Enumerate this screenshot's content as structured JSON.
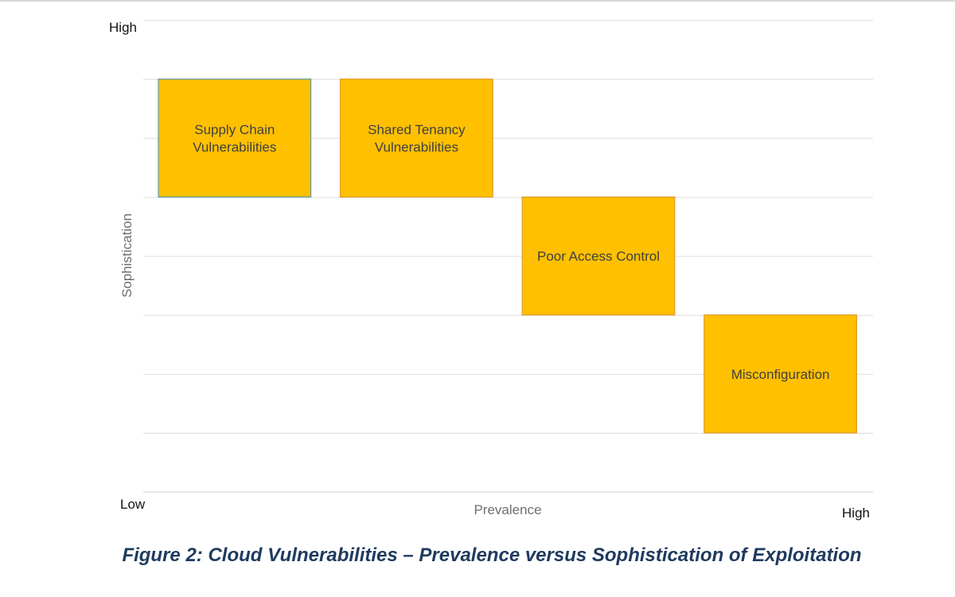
{
  "chart_data": {
    "type": "scatter",
    "title": "",
    "xlabel": "Prevalence",
    "ylabel": "Sophistication",
    "x_ticks": {
      "low": "Low",
      "high": "High"
    },
    "y_ticks": {
      "low": "Low",
      "high": "High"
    },
    "xlim": [
      0,
      4
    ],
    "ylim": [
      0,
      8
    ],
    "grid": true,
    "gridline_values": [
      1,
      2,
      3,
      4,
      5,
      6,
      7,
      8
    ],
    "box_color": "#FFC000",
    "box_border_color": "#E09A2A",
    "first_box_border_color": "#5B9BA8",
    "items": [
      {
        "label_lines": [
          "Supply Chain",
          "Vulnerabilities"
        ],
        "x": [
          0,
          1
        ],
        "y": [
          5,
          7
        ]
      },
      {
        "label_lines": [
          "Shared Tenancy",
          "Vulnerabilities"
        ],
        "x": [
          1,
          2
        ],
        "y": [
          5,
          7
        ]
      },
      {
        "label_lines": [
          "Poor Access Control"
        ],
        "x": [
          2,
          3
        ],
        "y": [
          3,
          5
        ]
      },
      {
        "label_lines": [
          "Misconfiguration"
        ],
        "x": [
          3,
          4
        ],
        "y": [
          1,
          3
        ]
      }
    ]
  },
  "caption": "Figure 2: Cloud Vulnerabilities – Prevalence versus Sophistication of Exploitation"
}
